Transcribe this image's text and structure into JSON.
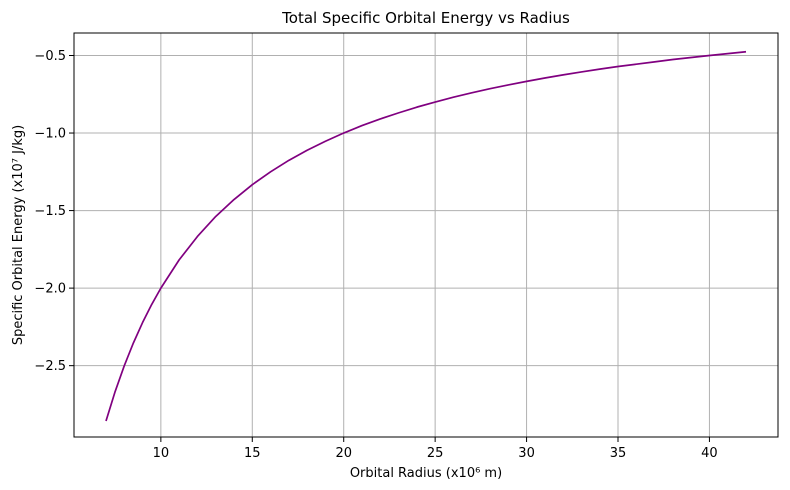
{
  "chart_data": {
    "type": "line",
    "title": "Total Specific Orbital Energy vs Radius",
    "xlabel": "Orbital Radius (x10⁶ m)",
    "ylabel": "Specific Orbital Energy (x10⁷ J/kg)",
    "xlim": [
      5.25,
      43.75
    ],
    "ylim": [
      -2.96,
      -0.355
    ],
    "xticks": [
      10,
      15,
      20,
      25,
      30,
      35,
      40
    ],
    "yticks": [
      -2.5,
      -2.0,
      -1.5,
      -1.0,
      -0.5
    ],
    "xtick_labels": [
      "10",
      "15",
      "20",
      "25",
      "30",
      "35",
      "40"
    ],
    "ytick_labels": [
      "−2.5",
      "−2.0",
      "−1.5",
      "−1.0",
      "−0.5"
    ],
    "grid": true,
    "series": [
      {
        "color": "#800080",
        "x": [
          7,
          7.5,
          8,
          8.5,
          9,
          9.5,
          10,
          11,
          12,
          13,
          14,
          15,
          16,
          17,
          18,
          19,
          20,
          21,
          22,
          23,
          24,
          25,
          26,
          27,
          28,
          29,
          30,
          31,
          32,
          33,
          34,
          35,
          36,
          37,
          38,
          39,
          40,
          41,
          42
        ],
        "y": [
          -2.857,
          -2.667,
          -2.5,
          -2.353,
          -2.222,
          -2.105,
          -2.0,
          -1.818,
          -1.667,
          -1.538,
          -1.429,
          -1.333,
          -1.25,
          -1.176,
          -1.111,
          -1.053,
          -1.0,
          -0.952,
          -0.909,
          -0.87,
          -0.833,
          -0.8,
          -0.769,
          -0.741,
          -0.714,
          -0.69,
          -0.667,
          -0.645,
          -0.625,
          -0.606,
          -0.588,
          -0.571,
          -0.556,
          -0.541,
          -0.526,
          -0.513,
          -0.5,
          -0.488,
          -0.476
        ]
      }
    ]
  }
}
